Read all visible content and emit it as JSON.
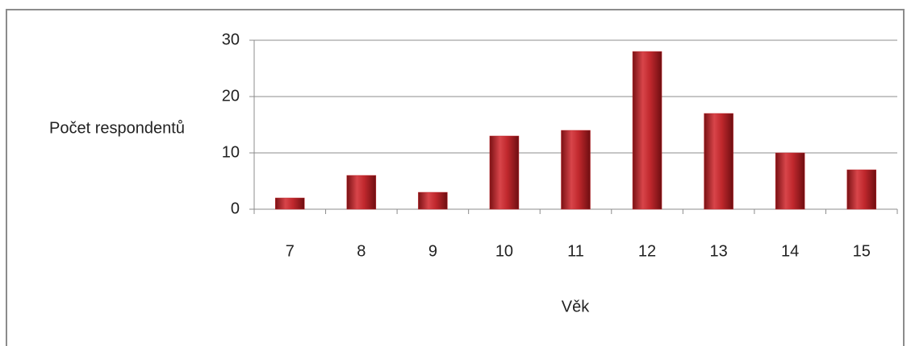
{
  "chart_data": {
    "type": "bar",
    "x_label": "Věk",
    "y_label": "Počet respondentů",
    "categories": [
      "7",
      "8",
      "9",
      "10",
      "11",
      "12",
      "13",
      "14",
      "15"
    ],
    "values": [
      2,
      6,
      3,
      13,
      14,
      28,
      17,
      10,
      7
    ],
    "color": "#c0282d",
    "ylim": [
      0,
      30
    ],
    "yticks": [
      0,
      10,
      20,
      30
    ],
    "grid": true
  }
}
